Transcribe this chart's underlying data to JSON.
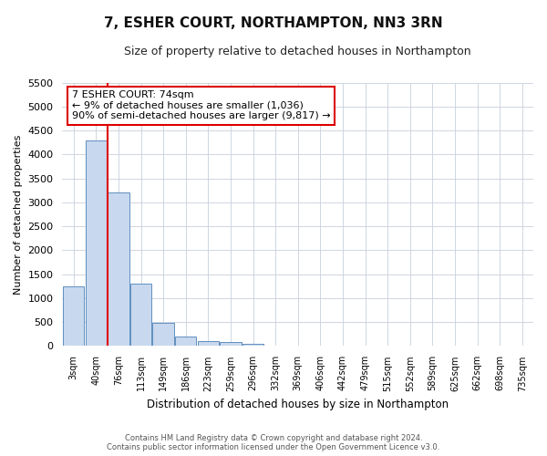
{
  "title": "7, ESHER COURT, NORTHAMPTON, NN3 3RN",
  "subtitle": "Size of property relative to detached houses in Northampton",
  "xlabel": "Distribution of detached houses by size in Northampton",
  "ylabel": "Number of detached properties",
  "bar_color": "#c8d8ee",
  "bar_edge_color": "#6090c0",
  "background_color": "#ffffff",
  "grid_color": "#c8d0dc",
  "bins": [
    "3sqm",
    "40sqm",
    "76sqm",
    "113sqm",
    "149sqm",
    "186sqm",
    "223sqm",
    "259sqm",
    "296sqm",
    "332sqm",
    "369sqm",
    "406sqm",
    "442sqm",
    "479sqm",
    "515sqm",
    "552sqm",
    "589sqm",
    "625sqm",
    "662sqm",
    "698sqm",
    "735sqm"
  ],
  "bar_heights": [
    1250,
    4300,
    3200,
    1300,
    480,
    200,
    105,
    80,
    55,
    10,
    0,
    0,
    0,
    0,
    0,
    0,
    0,
    0,
    0,
    0
  ],
  "property_bar_index": 2,
  "property_line_color": "#dd0000",
  "ylim_max": 5500,
  "yticks": [
    0,
    500,
    1000,
    1500,
    2000,
    2500,
    3000,
    3500,
    4000,
    4500,
    5000,
    5500
  ],
  "annotation_line1": "7 ESHER COURT: 74sqm",
  "annotation_line2": "← 9% of detached houses are smaller (1,036)",
  "annotation_line3": "90% of semi-detached houses are larger (9,817) →",
  "ann_box_color": "#dd0000",
  "footer_line1": "Contains HM Land Registry data © Crown copyright and database right 2024.",
  "footer_line2": "Contains public sector information licensed under the Open Government Licence v3.0."
}
